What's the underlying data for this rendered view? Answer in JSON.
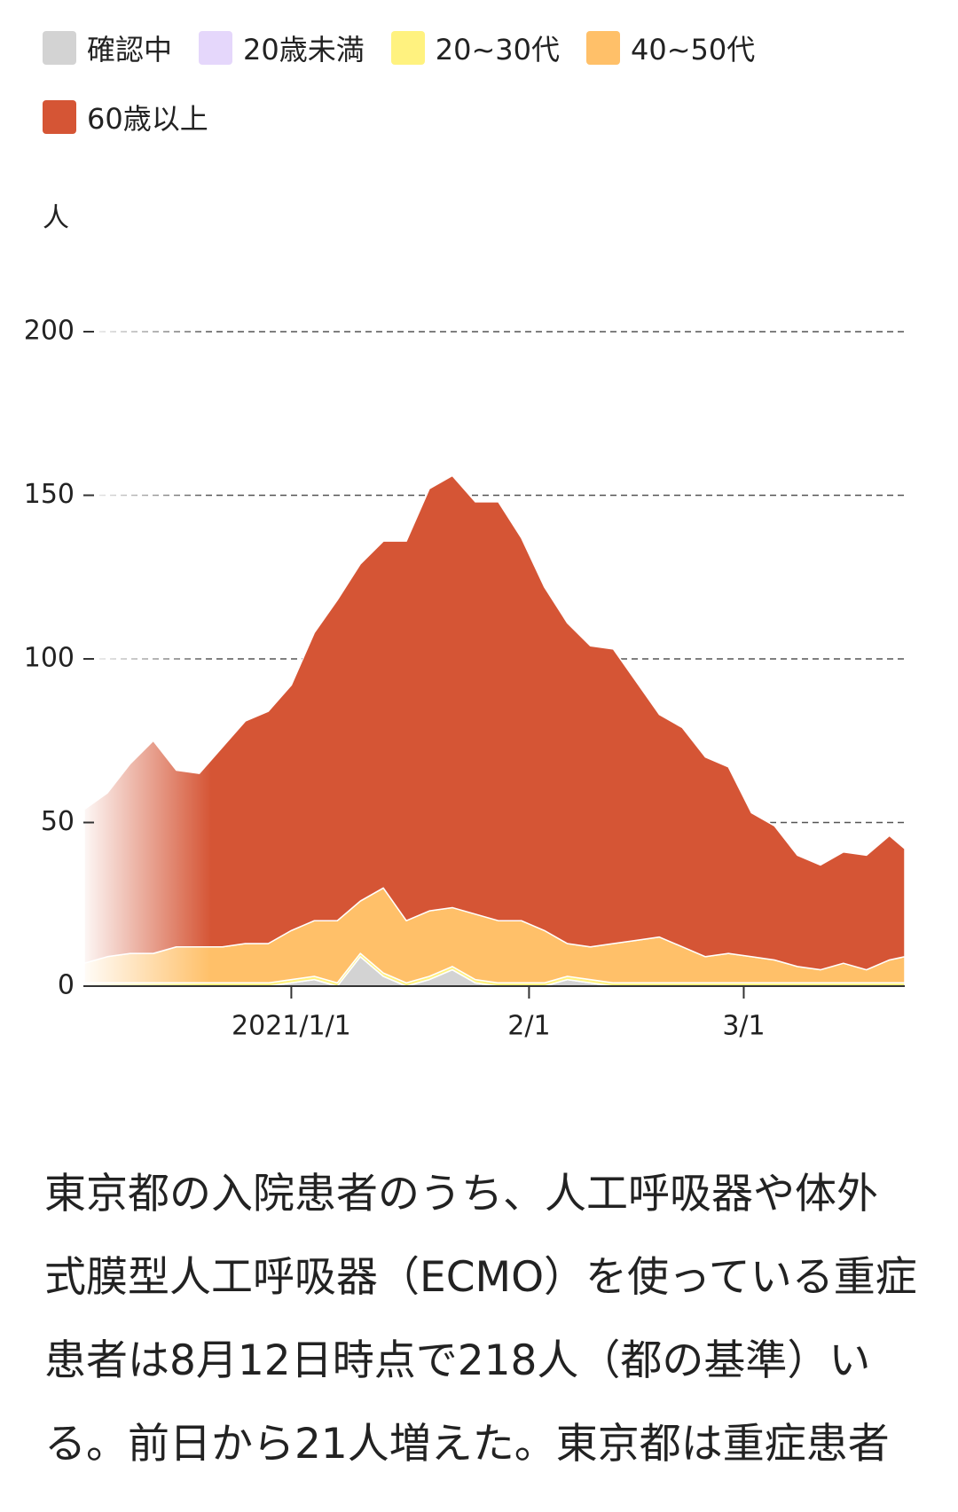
{
  "chart_data": {
    "type": "stacked-area",
    "y_label": "人",
    "x": [
      "2020-12-05",
      "2020-12-08",
      "2020-12-11",
      "2020-12-14",
      "2020-12-17",
      "2020-12-20",
      "2020-12-23",
      "2020-12-26",
      "2020-12-29",
      "2021-01-01",
      "2021-01-04",
      "2021-01-07",
      "2021-01-10",
      "2021-01-13",
      "2021-01-16",
      "2021-01-19",
      "2021-01-22",
      "2021-01-25",
      "2021-01-28",
      "2021-01-31",
      "2021-02-03",
      "2021-02-06",
      "2021-02-09",
      "2021-02-12",
      "2021-02-15",
      "2021-02-18",
      "2021-02-21",
      "2021-02-24",
      "2021-02-27",
      "2021-03-02",
      "2021-03-05",
      "2021-03-08",
      "2021-03-11",
      "2021-03-14",
      "2021-03-17",
      "2021-03-20",
      "2021-03-22"
    ],
    "series": [
      {
        "name": "確認中",
        "color": "#d3d3d3",
        "values": [
          0,
          0,
          0,
          0,
          0,
          0,
          0,
          0,
          0,
          1,
          2,
          0,
          9,
          3,
          0,
          2,
          5,
          1,
          0,
          0,
          0,
          2,
          1,
          0,
          0,
          0,
          0,
          0,
          0,
          0,
          0,
          0,
          0,
          0,
          0,
          0,
          0
        ]
      },
      {
        "name": "20歳未満",
        "color": "#e5d7fb",
        "values": [
          0,
          0,
          0,
          0,
          0,
          0,
          0,
          0,
          0,
          0,
          0,
          0,
          0,
          0,
          0,
          0,
          0,
          0,
          0,
          0,
          0,
          0,
          0,
          0,
          0,
          0,
          0,
          0,
          0,
          0,
          0,
          0,
          0,
          0,
          0,
          0,
          0
        ]
      },
      {
        "name": "20~30代",
        "color": "#fff27f",
        "values": [
          1,
          1,
          1,
          1,
          1,
          1,
          1,
          1,
          1,
          1,
          1,
          1,
          1,
          1,
          1,
          1,
          1,
          1,
          1,
          1,
          1,
          1,
          1,
          1,
          1,
          1,
          1,
          1,
          1,
          1,
          1,
          1,
          1,
          1,
          1,
          1,
          1
        ]
      },
      {
        "name": "40~50代",
        "color": "#ffc069",
        "values": [
          6,
          8,
          9,
          9,
          11,
          11,
          11,
          12,
          12,
          15,
          17,
          19,
          16,
          26,
          19,
          20,
          18,
          20,
          19,
          19,
          16,
          10,
          10,
          12,
          13,
          14,
          11,
          8,
          9,
          8,
          7,
          5,
          4,
          6,
          4,
          7,
          8
        ]
      },
      {
        "name": "60歳以上",
        "color": "#d55535",
        "values": [
          47,
          50,
          58,
          65,
          54,
          53,
          61,
          68,
          71,
          75,
          88,
          98,
          103,
          106,
          116,
          129,
          132,
          126,
          128,
          117,
          105,
          98,
          92,
          90,
          79,
          68,
          67,
          61,
          57,
          44,
          41,
          34,
          32,
          34,
          35,
          38,
          33
        ]
      }
    ],
    "xlim": [
      "2020-12-05",
      "2021-03-22"
    ],
    "xticks": [
      {
        "value": "2021-01-01",
        "label": "2021/1/1"
      },
      {
        "value": "2021-02-01",
        "label": "2/1"
      },
      {
        "value": "2021-03-01",
        "label": "3/1"
      }
    ],
    "ylim": [
      0,
      200
    ],
    "yticks": [
      0,
      50,
      100,
      150,
      200
    ],
    "grid": true
  },
  "paragraph": "東京都の入院患者のうち、人工呼吸器や体外式膜型人工呼吸器（ECMO）を使っている重症患者は8月12日時点で218人（都の基準）いる。前日から21人増えた。東京都は重症患者"
}
